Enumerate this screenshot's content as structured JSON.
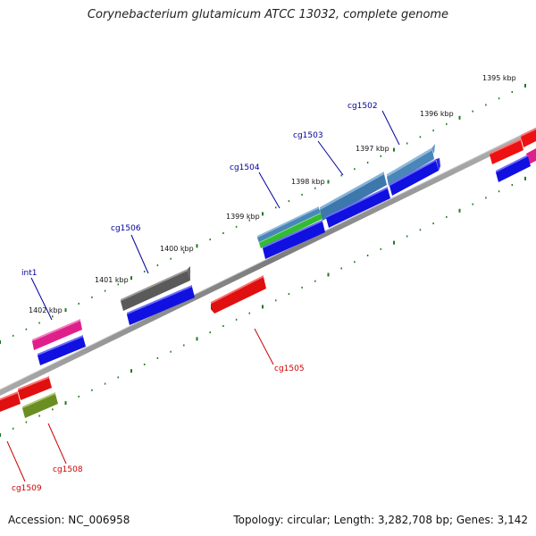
{
  "title": "Corynebacterium glutamicum ATCC 13032, complete genome",
  "footer": {
    "accession": "Accession: NC_006958",
    "info": "Topology: circular; Length: 3,282,708 bp; Genes: 3,142"
  },
  "colors": {
    "backbone": "#8a8a8a",
    "tick": "#1f7a1f",
    "forward_label": "#00009a",
    "reverse_label": "#cc0000"
  },
  "kbp_labels": [
    "1395 kbp",
    "1396 kbp",
    "1397 kbp",
    "1398 kbp",
    "1399 kbp",
    "1400 kbp",
    "1401 kbp",
    "1402 kbp"
  ],
  "gene_labels": [
    {
      "name": "cg1502",
      "strand": "forward"
    },
    {
      "name": "cg1503",
      "strand": "forward"
    },
    {
      "name": "cg1504",
      "strand": "forward"
    },
    {
      "name": "cg1506",
      "strand": "forward"
    },
    {
      "name": "int1",
      "strand": "forward"
    },
    {
      "name": "cg1505",
      "strand": "reverse"
    },
    {
      "name": "cg1508",
      "strand": "reverse"
    },
    {
      "name": "cg1509",
      "strand": "reverse"
    }
  ]
}
